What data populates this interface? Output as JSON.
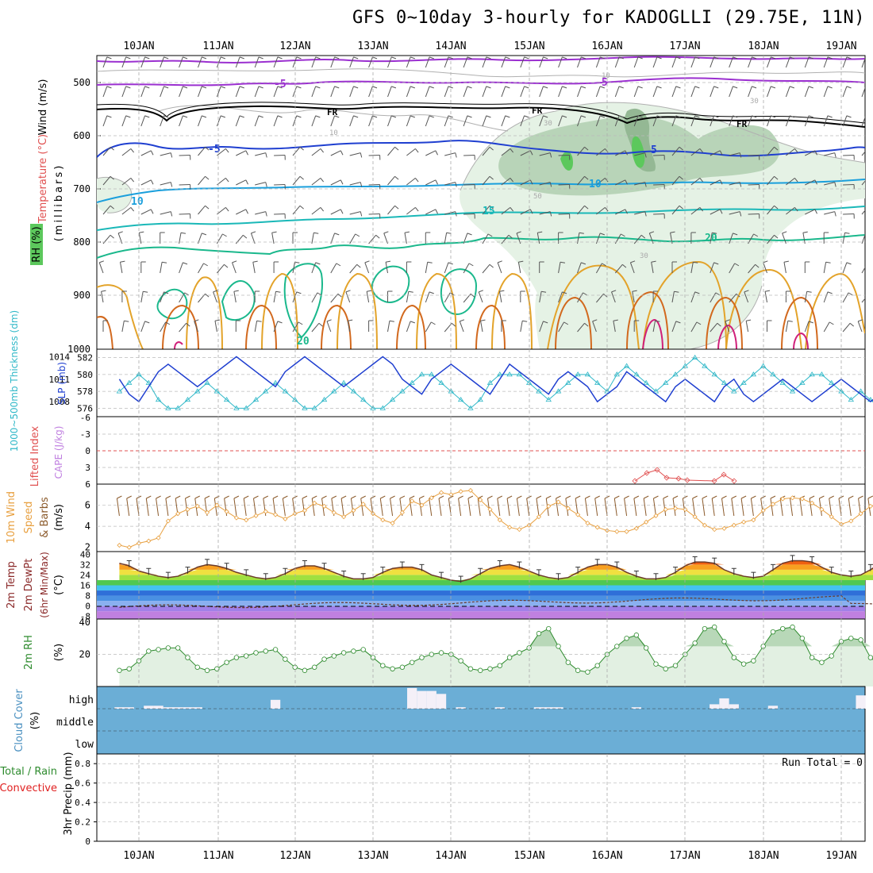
{
  "title": "GFS 0~10day 3-hourly for KADOGLLI (29.75E, 11N)",
  "date_labels": [
    "10JAN",
    "11JAN",
    "12JAN",
    "13JAN",
    "14JAN",
    "15JAN",
    "16JAN",
    "17JAN",
    "18JAN",
    "19JAN"
  ],
  "colors": {
    "rh_fill": "#c8e6c9",
    "rh_mid": "#9ccc9c",
    "rh_high": "#5cc85c",
    "slp_line": "#1f3fd0",
    "thickness_line": "#30b8c8",
    "wind10m_line": "#e8a040",
    "temp_line": "#6b3a2a",
    "rh2m_line": "#2e8b2e",
    "cloud_bg": "#6baed6",
    "grid": "#aaaaaa",
    "lifted_index": "#e05050",
    "cape": "#c080e0"
  },
  "panels": {
    "upper_air": {
      "label_wind": "Wind (m/s)",
      "label_temp": "Temperature (°C)",
      "label_rh": "RH (%)",
      "label_pressure": "(millibars)",
      "pressure_ticks": [
        "500",
        "600",
        "700",
        "800",
        "900",
        "1000"
      ],
      "contour_labels": {
        "minus5_a": "-5",
        "minus5_b": "-5",
        "fr_a": "FR",
        "fr_b": "FR",
        "fr_c": "FR",
        "five_a": "5",
        "five_b": "5",
        "five_c": "-10",
        "ten_a": "10",
        "ten_b": "10",
        "fifteen": "15",
        "twenty_a": "20",
        "twenty_b": "20",
        "rh10": "10",
        "rh30_a": "30",
        "rh30_b": "30",
        "rh30_c": "30",
        "rh10_b": "10",
        "rh50": "50"
      }
    },
    "slp_thickness": {
      "label_thick": "1000~500mb Thickness (dm)",
      "label_slp": "SLP (mb)",
      "left_ticks": [
        "582",
        "580",
        "578",
        "576"
      ],
      "right_ticks": [
        "1014",
        "1011",
        "1008"
      ]
    },
    "cape_li": {
      "label_li": "Lifted Index",
      "label_cape": "CAPE (J/kg)",
      "ticks": [
        "-6",
        "-3",
        "0",
        "3",
        "6"
      ]
    },
    "wind10m": {
      "label_main": "10m Wind",
      "label_speed": "Speed",
      "label_barbs": "& Barbs",
      "label_units": "(m/s)",
      "ticks": [
        "6",
        "4",
        "2"
      ]
    },
    "temp2m": {
      "label_temp": "2m Temp",
      "label_dewpt": "2m DewPt",
      "label_minmax": "(6hr Min/Max)",
      "label_units": "(°C)",
      "ticks": [
        "40",
        "32",
        "24",
        "16",
        "8",
        "0",
        "-8"
      ]
    },
    "rh2m": {
      "label": "2m RH",
      "label_units": "(%)",
      "ticks": [
        "40",
        "20"
      ]
    },
    "cloud": {
      "label": "Cloud Cover",
      "label_units": "(%)",
      "levels": [
        "high",
        "middle",
        "low"
      ]
    },
    "precip": {
      "label_a": "Total / Rain",
      "label_b": "Convective",
      "label_axis": "3hr Precip (mm)",
      "run_total": "Run Total = 0",
      "ticks": [
        "0.8",
        "0.6",
        "0.4",
        "0.2",
        "0"
      ]
    }
  },
  "chart_data": [
    {
      "type": "line",
      "name": "SLP / Thickness",
      "series": [
        {
          "name": "SLP (mb)",
          "values": [
            1011,
            1009,
            1008,
            1010,
            1012,
            1013,
            1012,
            1011,
            1010,
            1011,
            1012,
            1013,
            1014,
            1013,
            1012,
            1011,
            1010,
            1012,
            1013,
            1014,
            1013,
            1012,
            1011,
            1010,
            1011,
            1012,
            1013,
            1014,
            1013,
            1011,
            1010,
            1009,
            1011,
            1012,
            1013,
            1012,
            1011,
            1010,
            1009,
            1011,
            1013,
            1012,
            1011,
            1010,
            1009,
            1011,
            1012,
            1011,
            1010,
            1008,
            1009,
            1010,
            1012,
            1011,
            1010,
            1009,
            1008,
            1010,
            1011,
            1010,
            1009,
            1008,
            1010,
            1011,
            1009,
            1008,
            1009,
            1010,
            1011,
            1010,
            1009,
            1008,
            1009,
            1010,
            1011,
            1010,
            1009,
            1008,
            1009,
            1011,
            1010
          ]
        },
        {
          "name": "1000~500mb Thickness (dm)",
          "values": [
            578,
            579,
            580,
            579,
            577,
            576,
            576,
            577,
            578,
            579,
            578,
            577,
            576,
            576,
            577,
            578,
            579,
            578,
            577,
            576,
            576,
            577,
            578,
            579,
            578,
            577,
            576,
            576,
            577,
            578,
            579,
            580,
            580,
            579,
            578,
            577,
            576,
            577,
            579,
            580,
            580,
            580,
            579,
            578,
            577,
            578,
            579,
            580,
            580,
            579,
            578,
            580,
            581,
            580,
            579,
            578,
            579,
            580,
            581,
            582,
            581,
            580,
            579,
            578,
            579,
            580,
            581,
            580,
            579,
            578,
            579,
            580,
            580,
            579,
            578,
            577,
            578,
            577,
            576,
            575,
            576
          ]
        }
      ],
      "left_ylim": [
        575,
        583
      ],
      "right_ylim": [
        1006,
        1015
      ]
    },
    {
      "type": "line",
      "name": "10m Wind Speed (m/s)",
      "values": [
        2.2,
        2.0,
        2.4,
        2.6,
        2.9,
        4.5,
        5.2,
        5.6,
        5.9,
        5.3,
        6.0,
        5.4,
        4.8,
        4.6,
        5.0,
        5.4,
        5.1,
        4.7,
        5.2,
        5.5,
        6.2,
        5.9,
        5.3,
        4.9,
        5.5,
        6.1,
        5.2,
        4.6,
        4.3,
        5.3,
        6.4,
        6.0,
        6.7,
        7.2,
        7.0,
        7.3,
        7.4,
        6.5,
        5.6,
        4.6,
        3.9,
        3.7,
        4.1,
        4.9,
        5.9,
        6.3,
        5.7,
        5.1,
        4.3,
        3.9,
        3.6,
        3.5,
        3.5,
        3.8,
        4.4,
        5.0,
        5.6,
        5.7,
        5.6,
        4.9,
        4.1,
        3.7,
        3.8,
        4.1,
        4.4,
        4.6,
        5.5,
        6.1,
        6.6,
        6.7,
        6.6,
        6.2,
        5.6,
        4.9,
        4.2,
        4.5,
        5.2,
        5.9,
        6.2,
        6.4,
        6.2
      ]
    },
    {
      "type": "area",
      "name": "2m Temp (°C)",
      "values": [
        33,
        31,
        27,
        25,
        23,
        22,
        23,
        26,
        30,
        32,
        31,
        29,
        26,
        24,
        22,
        21,
        22,
        25,
        29,
        31,
        31,
        29,
        26,
        23,
        21,
        21,
        22,
        26,
        29,
        30,
        30,
        28,
        24,
        22,
        20,
        19,
        21,
        25,
        29,
        31,
        32,
        30,
        27,
        24,
        22,
        21,
        22,
        26,
        30,
        32,
        32,
        30,
        26,
        23,
        21,
        21,
        22,
        26,
        31,
        34,
        34,
        33,
        28,
        25,
        23,
        22,
        23,
        28,
        33,
        35,
        35,
        34,
        30,
        26,
        24,
        23,
        24,
        28,
        33,
        35,
        34
      ]
    },
    {
      "type": "area",
      "name": "2m RH (%)",
      "values": [
        10,
        11,
        16,
        22,
        23,
        24,
        24,
        18,
        12,
        10,
        11,
        15,
        18,
        19,
        21,
        22,
        23,
        17,
        12,
        10,
        12,
        17,
        19,
        21,
        22,
        23,
        18,
        13,
        11,
        12,
        15,
        18,
        20,
        21,
        20,
        16,
        11,
        10,
        11,
        13,
        18,
        21,
        24,
        33,
        36,
        25,
        15,
        10,
        9,
        13,
        20,
        25,
        30,
        32,
        24,
        14,
        11,
        13,
        20,
        27,
        36,
        37,
        28,
        18,
        14,
        16,
        25,
        34,
        36,
        37,
        30,
        18,
        15,
        19,
        28,
        30,
        29,
        18,
        13,
        15,
        14
      ]
    },
    {
      "type": "bar",
      "name": "Cloud Cover (%)",
      "levels": [
        "high",
        "middle",
        "low"
      ],
      "high_cover": [
        2,
        2,
        0,
        4,
        4,
        2,
        2,
        2,
        2,
        0,
        0,
        0,
        0,
        0,
        0,
        0,
        12,
        0,
        0,
        0,
        0,
        0,
        0,
        0,
        0,
        0,
        0,
        0,
        0,
        0,
        28,
        24,
        24,
        20,
        0,
        2,
        0,
        0,
        0,
        2,
        0,
        0,
        0,
        2,
        2,
        2,
        0,
        0,
        0,
        0,
        0,
        0,
        0,
        2,
        0,
        0,
        0,
        0,
        0,
        0,
        0,
        6,
        14,
        6,
        0,
        0,
        0,
        4,
        0,
        0,
        0,
        0,
        0,
        0,
        0,
        0,
        18,
        0,
        14,
        14,
        14
      ]
    },
    {
      "type": "line",
      "name": "3hr Precip (mm)",
      "ylim": [
        0,
        0.9
      ],
      "values": [
        0,
        0,
        0,
        0,
        0,
        0,
        0,
        0,
        0,
        0,
        0,
        0,
        0,
        0,
        0,
        0,
        0,
        0,
        0,
        0,
        0,
        0,
        0,
        0,
        0,
        0,
        0,
        0,
        0,
        0,
        0,
        0,
        0,
        0,
        0,
        0,
        0,
        0,
        0,
        0,
        0,
        0,
        0,
        0,
        0,
        0,
        0,
        0,
        0,
        0,
        0,
        0,
        0,
        0,
        0,
        0,
        0,
        0,
        0,
        0,
        0,
        0,
        0,
        0,
        0,
        0,
        0,
        0,
        0,
        0,
        0,
        0,
        0,
        0,
        0,
        0,
        0,
        0,
        0,
        0,
        0
      ]
    }
  ]
}
